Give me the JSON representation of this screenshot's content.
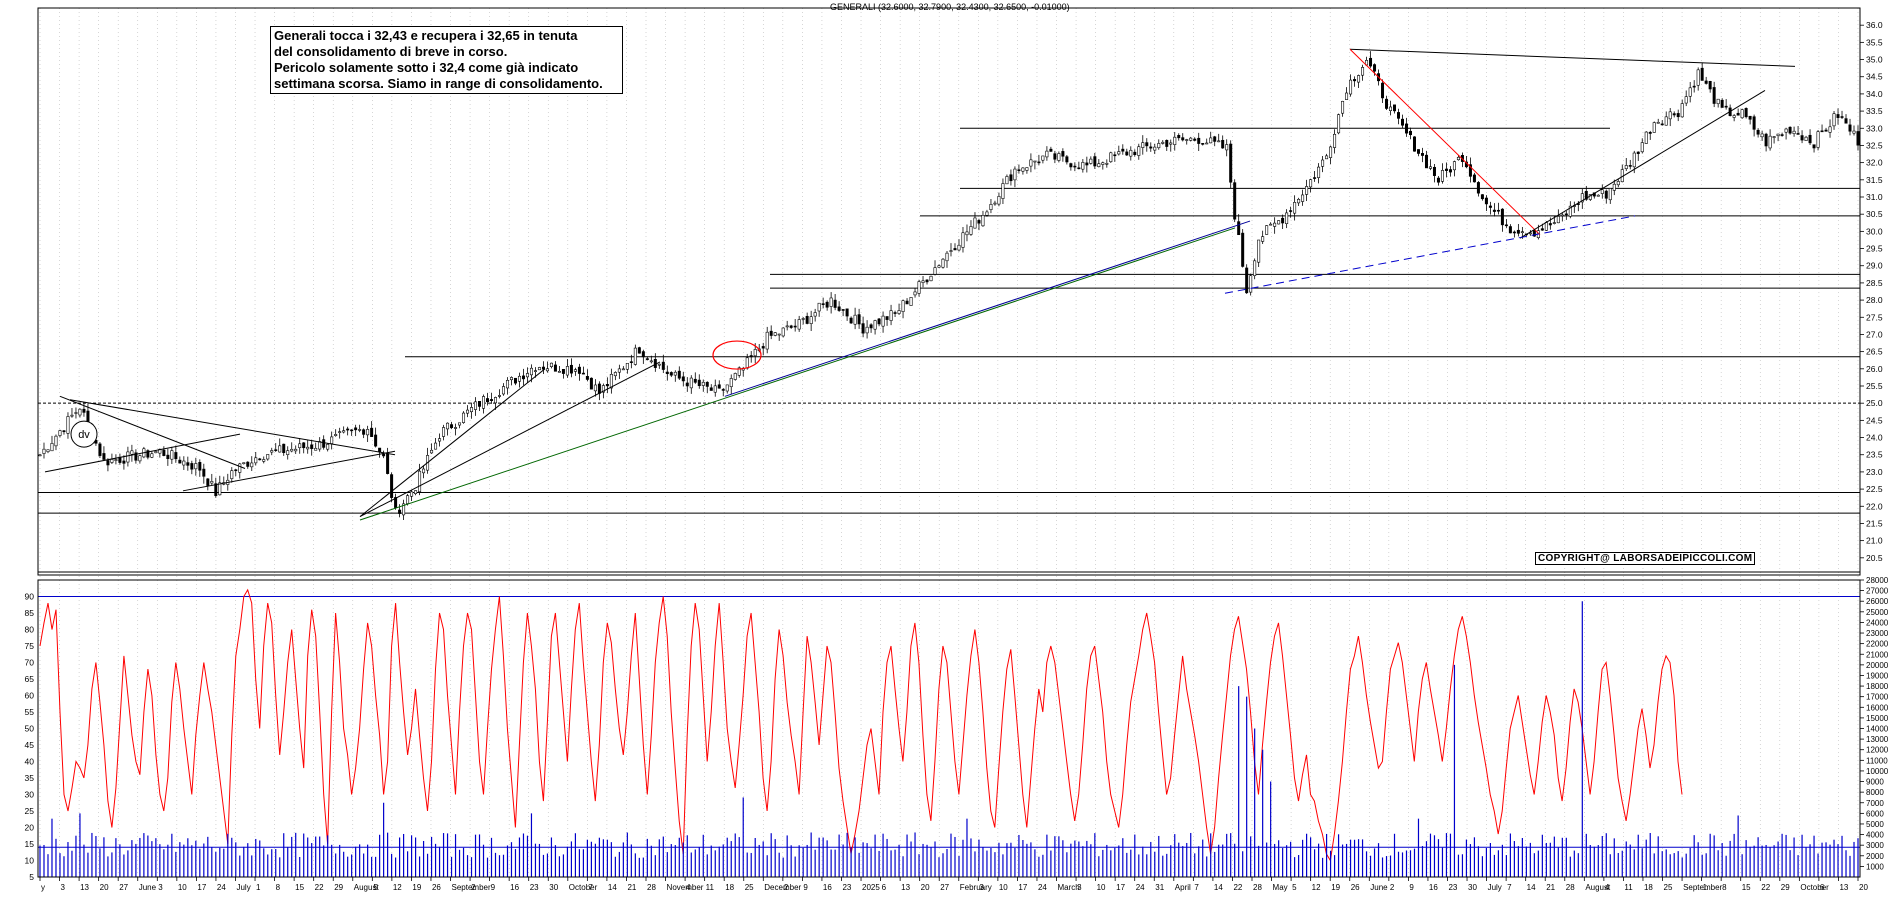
{
  "header": "GENERALI (32.6000, 32.7900, 32.4300, 32.6500, -0.01000)",
  "annotation_lines": [
    "Generali tocca i 32,43 e recupera i 32,65 in tenuta",
    "del consolidamento di breve in corso.",
    "Pericolo solamente sotto i 32,4 come già indicato",
    "settimana scorsa. Siamo in range di consolidamento."
  ],
  "copyright": "COPYRIGHT@ LABORSADEIPICCOLI.COM",
  "dv_label": "dv",
  "colors": {
    "candle": "#000000",
    "oscillator": "#ff0000",
    "volume": "#0000cc",
    "trend_red": "#ff0000",
    "trend_blue": "#000099",
    "trend_green": "#006600"
  },
  "chart_data": [
    {
      "type": "candlestick",
      "title": "",
      "ylim": [
        20.0,
        36.5
      ],
      "y_ticks": [
        "20.5",
        "21.0",
        "21.5",
        "22.0",
        "22.5",
        "23.0",
        "23.5",
        "24.0",
        "24.5",
        "25.0",
        "25.5",
        "26.0",
        "26.5",
        "27.0",
        "27.5",
        "28.0",
        "28.5",
        "29.0",
        "29.5",
        "30.0",
        "30.5",
        "31.0",
        "31.5",
        "32.0",
        "32.5",
        "33.0",
        "33.5",
        "34.0",
        "34.5",
        "35.0",
        "35.5",
        "36.0"
      ],
      "close_anchors": [
        {
          "i": 0,
          "v": 23.5
        },
        {
          "i": 10,
          "v": 24.9
        },
        {
          "i": 16,
          "v": 23.3
        },
        {
          "i": 30,
          "v": 23.6
        },
        {
          "i": 40,
          "v": 23.1
        },
        {
          "i": 44,
          "v": 22.4
        },
        {
          "i": 48,
          "v": 23.0
        },
        {
          "i": 55,
          "v": 23.5
        },
        {
          "i": 70,
          "v": 23.8
        },
        {
          "i": 82,
          "v": 24.3
        },
        {
          "i": 86,
          "v": 23.4
        },
        {
          "i": 89,
          "v": 21.8
        },
        {
          "i": 94,
          "v": 22.6
        },
        {
          "i": 100,
          "v": 24.1
        },
        {
          "i": 110,
          "v": 25.0
        },
        {
          "i": 124,
          "v": 26.1
        },
        {
          "i": 135,
          "v": 26.0
        },
        {
          "i": 140,
          "v": 25.3
        },
        {
          "i": 150,
          "v": 26.6
        },
        {
          "i": 158,
          "v": 25.8
        },
        {
          "i": 170,
          "v": 25.3
        },
        {
          "i": 176,
          "v": 26.0
        },
        {
          "i": 182,
          "v": 26.9
        },
        {
          "i": 190,
          "v": 27.3
        },
        {
          "i": 198,
          "v": 28.0
        },
        {
          "i": 206,
          "v": 27.2
        },
        {
          "i": 214,
          "v": 27.6
        },
        {
          "i": 220,
          "v": 28.4
        },
        {
          "i": 228,
          "v": 29.5
        },
        {
          "i": 236,
          "v": 30.5
        },
        {
          "i": 244,
          "v": 31.8
        },
        {
          "i": 252,
          "v": 32.2
        },
        {
          "i": 262,
          "v": 31.9
        },
        {
          "i": 272,
          "v": 32.3
        },
        {
          "i": 282,
          "v": 32.6
        },
        {
          "i": 290,
          "v": 32.7
        },
        {
          "i": 297,
          "v": 32.4
        },
        {
          "i": 299,
          "v": 30.5
        },
        {
          "i": 302,
          "v": 28.3
        },
        {
          "i": 305,
          "v": 29.8
        },
        {
          "i": 311,
          "v": 30.4
        },
        {
          "i": 317,
          "v": 31.3
        },
        {
          "i": 322,
          "v": 32.2
        },
        {
          "i": 327,
          "v": 34.2
        },
        {
          "i": 332,
          "v": 35.0
        },
        {
          "i": 338,
          "v": 33.5
        },
        {
          "i": 344,
          "v": 32.5
        },
        {
          "i": 350,
          "v": 31.5
        },
        {
          "i": 356,
          "v": 32.2
        },
        {
          "i": 362,
          "v": 30.8
        },
        {
          "i": 368,
          "v": 30.1
        },
        {
          "i": 374,
          "v": 30.0
        },
        {
          "i": 380,
          "v": 30.3
        },
        {
          "i": 386,
          "v": 31.0
        },
        {
          "i": 392,
          "v": 31.1
        },
        {
          "i": 398,
          "v": 32.0
        },
        {
          "i": 404,
          "v": 33.2
        },
        {
          "i": 410,
          "v": 33.5
        },
        {
          "i": 415,
          "v": 34.6
        },
        {
          "i": 421,
          "v": 33.5
        },
        {
          "i": 426,
          "v": 33.4
        },
        {
          "i": 432,
          "v": 32.6
        },
        {
          "i": 438,
          "v": 33.0
        },
        {
          "i": 444,
          "v": 32.6
        },
        {
          "i": 450,
          "v": 33.4
        },
        {
          "i": 455,
          "v": 32.65
        }
      ],
      "horizontal_levels": [
        21.8,
        22.4,
        25.0,
        26.35,
        28.35,
        28.75,
        30.45,
        31.25,
        33.0
      ],
      "x_tick_labels": [
        "y",
        "3",
        "13",
        "20",
        "27",
        "June",
        "3",
        "10",
        "17",
        "24",
        "July",
        "1",
        "8",
        "15",
        "22",
        "29",
        "August",
        "5",
        "12",
        "19",
        "26",
        "September",
        "2",
        "9",
        "16",
        "23",
        "30",
        "October",
        "7",
        "14",
        "21",
        "28",
        "November",
        "4",
        "11",
        "18",
        "25",
        "December",
        "2",
        "9",
        "16",
        "23",
        "2025",
        "6",
        "13",
        "20",
        "27",
        "February",
        "3",
        "10",
        "17",
        "24",
        "March",
        "3",
        "10",
        "17",
        "24",
        "31",
        "April",
        "7",
        "14",
        "22",
        "28",
        "May",
        "5",
        "12",
        "19",
        "26",
        "June",
        "2",
        "9",
        "16",
        "23",
        "30",
        "July",
        "7",
        "14",
        "21",
        "28",
        "August",
        "4",
        "11",
        "18",
        "25",
        "September",
        "1",
        "8",
        "15",
        "22",
        "29",
        "October",
        "6",
        "13",
        "20"
      ]
    },
    {
      "type": "line",
      "title": "",
      "ylim": [
        5,
        95
      ],
      "y_ticks": [
        "5",
        "10",
        "15",
        "20",
        "25",
        "30",
        "35",
        "40",
        "45",
        "50",
        "55",
        "60",
        "65",
        "70",
        "75",
        "80",
        "85",
        "90"
      ],
      "reference_lines": [
        90,
        14
      ],
      "series": [
        {
          "values": [
            75,
            82,
            88,
            80,
            86,
            55,
            30,
            25,
            32,
            40,
            38,
            35,
            45,
            62,
            70,
            58,
            45,
            28,
            20,
            32,
            52,
            72,
            60,
            48,
            40,
            36,
            55,
            68,
            60,
            42,
            30,
            25,
            35,
            58,
            70,
            62,
            50,
            40,
            30,
            48,
            60,
            70,
            62,
            55,
            45,
            35,
            25,
            15,
            48,
            72,
            80,
            90,
            92,
            88,
            65,
            50,
            75,
            88,
            82,
            60,
            42,
            55,
            70,
            80,
            65,
            50,
            38,
            72,
            86,
            78,
            55,
            30,
            15,
            55,
            85,
            70,
            50,
            42,
            30,
            38,
            50,
            68,
            82,
            75,
            60,
            48,
            30,
            40,
            75,
            88,
            70,
            55,
            42,
            50,
            62,
            48,
            35,
            25,
            40,
            68,
            85,
            80,
            60,
            45,
            30,
            55,
            75,
            85,
            80,
            60,
            40,
            30,
            50,
            68,
            80,
            90,
            72,
            50,
            35,
            20,
            45,
            70,
            85,
            75,
            62,
            40,
            28,
            52,
            78,
            85,
            70,
            55,
            40,
            62,
            80,
            88,
            70,
            55,
            40,
            28,
            45,
            70,
            82,
            76,
            62,
            50,
            42,
            55,
            72,
            85,
            65,
            45,
            30,
            48,
            70,
            82,
            90,
            78,
            55,
            38,
            22,
            12,
            48,
            75,
            88,
            80,
            60,
            40,
            55,
            75,
            88,
            70,
            50,
            40,
            32,
            45,
            60,
            78,
            85,
            70,
            55,
            35,
            25,
            40,
            65,
            80,
            72,
            58,
            48,
            40,
            30,
            55,
            78,
            70,
            58,
            45,
            60,
            75,
            70,
            55,
            38,
            28,
            20,
            12,
            18,
            25,
            35,
            45,
            50,
            40,
            30,
            55,
            70,
            75,
            62,
            50,
            40,
            55,
            75,
            82,
            70,
            48,
            30,
            22,
            40,
            62,
            75,
            70,
            55,
            40,
            30,
            45,
            60,
            72,
            80,
            70,
            55,
            38,
            25,
            20,
            38,
            55,
            68,
            74,
            60,
            45,
            30,
            20,
            35,
            50,
            62,
            55,
            70,
            75,
            70,
            60,
            50,
            40,
            30,
            22,
            30,
            45,
            62,
            72,
            75,
            65,
            55,
            40,
            30,
            25,
            20,
            30,
            45,
            58,
            65,
            72,
            80,
            85,
            78,
            70,
            55,
            42,
            30,
            35,
            48,
            60,
            72,
            62,
            55,
            48,
            40,
            30,
            20,
            12,
            20,
            35,
            48,
            60,
            72,
            80,
            84,
            76,
            68,
            55,
            40,
            30,
            45,
            58,
            70,
            78,
            82,
            72,
            60,
            48,
            35,
            28,
            36,
            42,
            30,
            28,
            22,
            18,
            12,
            10,
            18,
            28,
            40,
            55,
            68,
            72,
            78,
            70,
            60,
            52,
            45,
            38,
            40,
            55,
            68,
            72,
            76,
            70,
            60,
            50,
            40,
            55,
            65,
            70,
            62,
            55,
            48,
            40,
            50,
            62,
            72,
            80,
            84,
            78,
            70,
            60,
            52,
            45,
            38,
            30,
            25,
            18,
            25,
            38,
            50,
            55,
            60,
            52,
            44,
            36,
            30,
            40,
            52,
            60,
            55,
            48,
            35,
            28,
            38,
            52,
            62,
            58,
            50,
            40,
            30,
            40,
            55,
            68,
            70,
            60,
            48,
            35,
            28,
            22,
            30,
            40,
            50,
            56,
            48,
            38,
            45,
            58,
            68,
            72,
            70,
            60,
            40,
            30
          ]
        }
      ]
    },
    {
      "type": "bar",
      "title": "",
      "ylim": [
        0,
        28000
      ],
      "y_ticks": [
        "1000",
        "2000",
        "3000",
        "4000",
        "5000",
        "6000",
        "7000",
        "8000",
        "9000",
        "10000",
        "11000",
        "12000",
        "13000",
        "14000",
        "15000",
        "16000",
        "17000",
        "18000",
        "19000",
        "20000",
        "21000",
        "22000",
        "23000",
        "24000",
        "25000",
        "26000",
        "27000",
        "28000"
      ],
      "series": [
        {
          "spikes": [
            {
              "i": 3,
              "v": 5500
            },
            {
              "i": 10,
              "v": 6000
            },
            {
              "i": 86,
              "v": 7000
            },
            {
              "i": 123,
              "v": 6000
            },
            {
              "i": 176,
              "v": 7500
            },
            {
              "i": 232,
              "v": 5500
            },
            {
              "i": 300,
              "v": 18000
            },
            {
              "i": 302,
              "v": 17000
            },
            {
              "i": 304,
              "v": 14000
            },
            {
              "i": 306,
              "v": 12000
            },
            {
              "i": 308,
              "v": 9000
            },
            {
              "i": 345,
              "v": 5500
            },
            {
              "i": 354,
              "v": 20000
            },
            {
              "i": 386,
              "v": 26000
            },
            {
              "i": 425,
              "v": 5800
            }
          ],
          "baseline_min": 1800,
          "baseline_max": 4200
        }
      ]
    }
  ]
}
